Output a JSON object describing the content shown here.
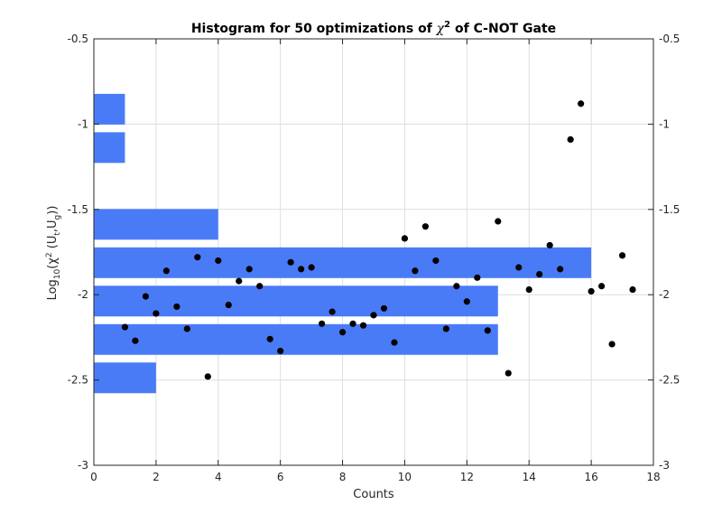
{
  "chart_data": {
    "type": "bar",
    "orientation": "horizontal",
    "title_main": "Histogram for 50 optimizations of ",
    "title_symbol": "χ",
    "title_sup": "2",
    "title_tail": " of C-NOT Gate",
    "xlabel": "Counts",
    "ylabel_prefix": "Log",
    "ylabel_sub": "10",
    "ylabel_open": "(χ",
    "ylabel_sup": "2",
    "ylabel_mid": " (U",
    "ylabel_sub_t": "t",
    "ylabel_comma": ",U",
    "ylabel_sub_g": "g",
    "ylabel_close": "))",
    "xlim": [
      0,
      18
    ],
    "ylim": [
      -3,
      -0.5
    ],
    "xticks": [
      0,
      2,
      4,
      6,
      8,
      10,
      12,
      14,
      16,
      18
    ],
    "yticks": [
      -3,
      -2.5,
      -2,
      -1.5,
      -1,
      -0.5
    ],
    "ytick_labels": [
      "-3",
      "-2.5",
      "-2",
      "-1.5",
      "-1",
      "-0.5"
    ],
    "grid": true,
    "right_axis": true,
    "bar_color": "#4a7bf7",
    "dot_color": "#000000",
    "bars": [
      {
        "y_center": -2.4875,
        "count": 2
      },
      {
        "y_center": -2.2625,
        "count": 13
      },
      {
        "y_center": -2.0375,
        "count": 13
      },
      {
        "y_center": -1.8125,
        "count": 16
      },
      {
        "y_center": -1.5875,
        "count": 4
      },
      {
        "y_center": -1.3625,
        "count": 0
      },
      {
        "y_center": -1.1375,
        "count": 1
      },
      {
        "y_center": -0.9125,
        "count": 1
      }
    ],
    "bar_height": 0.18,
    "points": [
      [
        1.0,
        -2.19
      ],
      [
        1.333,
        -2.27
      ],
      [
        1.667,
        -2.01
      ],
      [
        2.0,
        -2.11
      ],
      [
        2.333,
        -1.86
      ],
      [
        2.667,
        -2.07
      ],
      [
        3.0,
        -2.2
      ],
      [
        3.333,
        -1.78
      ],
      [
        3.667,
        -2.48
      ],
      [
        4.0,
        -1.8
      ],
      [
        4.333,
        -2.06
      ],
      [
        4.667,
        -1.92
      ],
      [
        5.0,
        -1.85
      ],
      [
        5.333,
        -1.95
      ],
      [
        5.667,
        -2.26
      ],
      [
        6.0,
        -2.33
      ],
      [
        6.333,
        -1.81
      ],
      [
        6.667,
        -1.85
      ],
      [
        7.0,
        -1.84
      ],
      [
        7.333,
        -2.17
      ],
      [
        7.667,
        -2.1
      ],
      [
        8.0,
        -2.22
      ],
      [
        8.333,
        -2.17
      ],
      [
        8.667,
        -2.18
      ],
      [
        9.0,
        -2.12
      ],
      [
        9.333,
        -2.08
      ],
      [
        9.667,
        -2.28
      ],
      [
        10.0,
        -1.67
      ],
      [
        10.333,
        -1.86
      ],
      [
        10.667,
        -1.6
      ],
      [
        11.0,
        -1.8
      ],
      [
        11.333,
        -2.2
      ],
      [
        11.667,
        -1.95
      ],
      [
        12.0,
        -2.04
      ],
      [
        12.333,
        -1.9
      ],
      [
        12.667,
        -2.21
      ],
      [
        13.0,
        -1.57
      ],
      [
        13.333,
        -2.46
      ],
      [
        13.667,
        -1.84
      ],
      [
        14.0,
        -1.97
      ],
      [
        14.333,
        -1.88
      ],
      [
        14.667,
        -1.71
      ],
      [
        15.0,
        -1.85
      ],
      [
        15.333,
        -1.09
      ],
      [
        15.667,
        -0.88
      ],
      [
        16.0,
        -1.98
      ],
      [
        16.333,
        -1.95
      ],
      [
        16.667,
        -2.29
      ],
      [
        17.0,
        -1.77
      ],
      [
        17.333,
        -1.97
      ]
    ]
  }
}
